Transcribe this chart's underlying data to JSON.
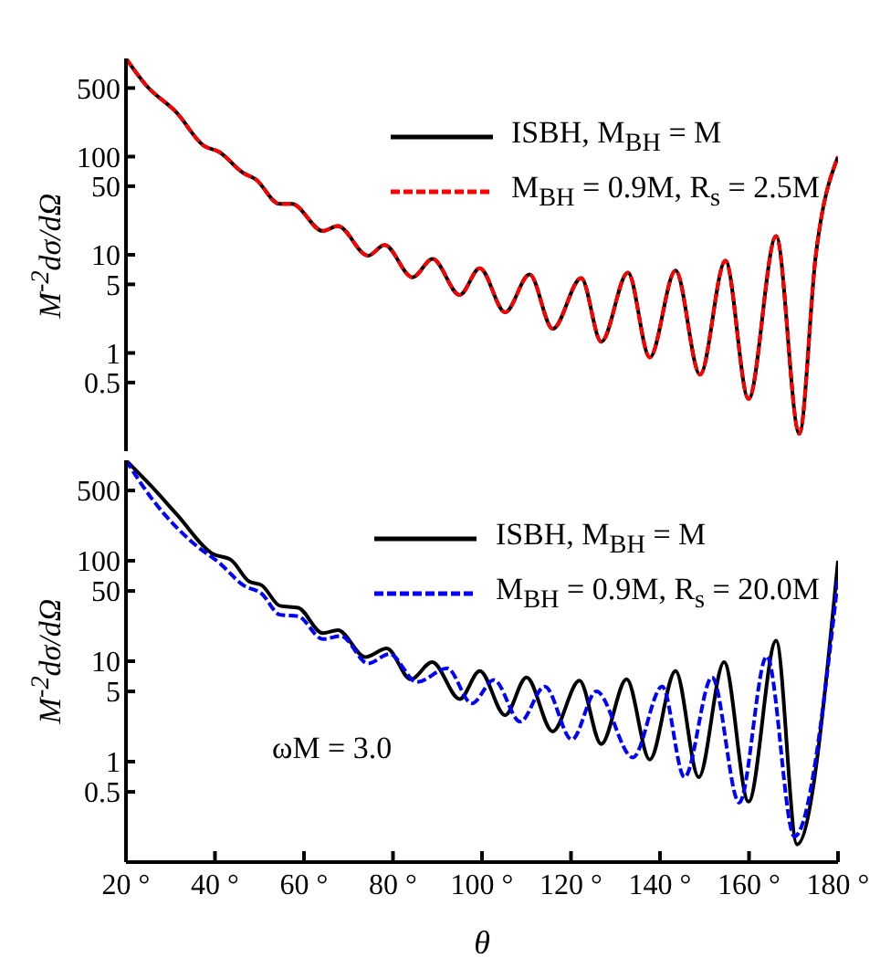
{
  "chart_data": [
    {
      "type": "line",
      "ylabel": "M$^{-2}$dσ/dΩ",
      "xlim": [
        20,
        180
      ],
      "xticks": [
        {
          "value": 20,
          "label": null
        },
        {
          "value": 40,
          "label": null
        },
        {
          "value": 60,
          "label": null
        },
        {
          "value": 80,
          "label": null
        },
        {
          "value": 100,
          "label": null
        },
        {
          "value": 120,
          "label": null
        },
        {
          "value": 140,
          "label": null
        },
        {
          "value": 160,
          "label": null
        },
        {
          "value": 180,
          "label": null
        }
      ],
      "ylim": [
        0.1,
        1000
      ],
      "yticks": [
        0.5,
        1,
        5,
        10,
        50,
        100,
        500
      ],
      "log": "y",
      "legend": "top right",
      "tick_labels": "y",
      "series": [
        {
          "name": "ISBH, M$_{BH}$ = M",
          "color": "#000000",
          "line_style": "solid",
          "x": [
            20,
            24.5,
            31.4,
            37.5,
            40.9,
            46.4,
            49.1,
            54.5,
            57.3,
            64.2,
            67.6,
            74.4,
            78.1,
            84.4,
            88.9,
            95,
            99.5,
            105.2,
            110.7,
            115.9,
            122.3,
            126.8,
            132.8,
            137.7,
            143.5,
            149,
            154.7,
            159.9,
            166.1,
            171.3,
            175,
            180
          ],
          "values": [
            1000,
            535,
            280,
            129,
            112,
            68,
            59,
            33,
            33,
            17.5,
            19.6,
            9.8,
            12.6,
            5.9,
            9.1,
            3.9,
            7.3,
            2.6,
            6.3,
            1.76,
            5.8,
            1.3,
            6.6,
            0.9,
            6.9,
            0.6,
            8.7,
            0.34,
            15.5,
            0.15,
            9.8,
            100
          ]
        },
        {
          "name": "M$_{BH}$ = 0.9M, R$_{s}$ = 2.5M",
          "color": "#ff0000",
          "line_style": "dashed",
          "x": [
            20,
            24.5,
            31.4,
            37.5,
            40.9,
            46.4,
            49.1,
            54.5,
            57.3,
            64.2,
            67.6,
            74.4,
            78.1,
            84.4,
            88.9,
            95,
            99.5,
            105.2,
            110.7,
            115.9,
            122.3,
            126.8,
            132.8,
            137.7,
            143.5,
            149,
            154.7,
            159.9,
            166.1,
            171.3,
            175,
            180
          ],
          "values": [
            1000,
            535,
            280,
            129,
            112,
            68,
            59,
            33,
            33,
            17.5,
            19.6,
            9.8,
            12.6,
            5.9,
            9.1,
            3.9,
            7.3,
            2.6,
            6.3,
            1.76,
            5.8,
            1.3,
            6.6,
            0.9,
            6.9,
            0.6,
            8.7,
            0.34,
            15.5,
            0.15,
            9.8,
            100
          ]
        }
      ]
    },
    {
      "type": "line",
      "xlabel": "θ",
      "ylabel": "M$^{-2}$dσ/dΩ",
      "annotations": [
        "ωM = 3.0"
      ],
      "xlim": [
        20,
        180
      ],
      "xticks": [
        {
          "value": 20,
          "label": "20 °"
        },
        {
          "value": 40,
          "label": "40 °"
        },
        {
          "value": 60,
          "label": "60 °"
        },
        {
          "value": 80,
          "label": "80 °"
        },
        {
          "value": 100,
          "label": "100 °"
        },
        {
          "value": 120,
          "label": "120 °"
        },
        {
          "value": 140,
          "label": "140 °"
        },
        {
          "value": 160,
          "label": "160 °"
        },
        {
          "value": 180,
          "label": "180 °"
        }
      ],
      "ylim": [
        0.1,
        1000
      ],
      "yticks": [
        0.5,
        1,
        5,
        10,
        50,
        100,
        500
      ],
      "log": "y",
      "legend": "top right",
      "series": [
        {
          "name": "ISBH, M$_{BH}$ = M",
          "color": "#000000",
          "line_style": "solid",
          "x": [
            20,
            25.9,
            31.4,
            39.5,
            43.6,
            47.7,
            50.5,
            54.6,
            58.7,
            64.2,
            67.6,
            73.8,
            78.6,
            84,
            88.8,
            95,
            99.5,
            105.2,
            110,
            115.9,
            121.9,
            126.8,
            132.5,
            137.7,
            143.5,
            148.7,
            154.4,
            159.9,
            166.1,
            170.8,
            180
          ],
          "values": [
            1000,
            540,
            290,
            117,
            102,
            62,
            57,
            35.6,
            34,
            19,
            20.4,
            11,
            13.4,
            6.6,
            9.8,
            4.2,
            8,
            2.9,
            6.9,
            2.0,
            6.4,
            1.5,
            6.6,
            1.05,
            8,
            0.7,
            9.8,
            0.4,
            16,
            0.15,
            100
          ]
        },
        {
          "name": "M$_{BH}$ = 0.9M, R$_{s}$ = 20.0M",
          "color": "#0000ff",
          "line_style": "dashed",
          "x": [
            20,
            25.9,
            35.5,
            41,
            46.4,
            50.5,
            54.6,
            58.7,
            64.2,
            68.3,
            74.4,
            79.2,
            85.4,
            92.2,
            97.7,
            102.7,
            108.6,
            114.1,
            120.2,
            125.7,
            133.9,
            140.5,
            145.5,
            151.7,
            157.8,
            164,
            170.2,
            180
          ],
          "values": [
            1000,
            410,
            145,
            95,
            57,
            47,
            29,
            28,
            16.6,
            17.8,
            9.5,
            11.8,
            6.2,
            8.5,
            3.8,
            6.5,
            2.5,
            5.6,
            1.66,
            5.0,
            1.1,
            5.6,
            0.7,
            6.9,
            0.39,
            11.2,
            0.18,
            65
          ]
        }
      ]
    }
  ]
}
